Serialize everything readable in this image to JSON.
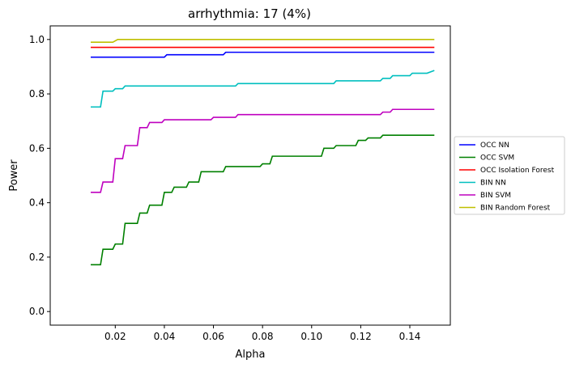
{
  "chart_data": {
    "type": "line",
    "title": "arrhythmia: 17 (4%)",
    "xlabel": "Alpha",
    "ylabel": "Power",
    "xlim": [
      -0.0065,
      0.1565
    ],
    "ylim": [
      -0.05,
      1.05
    ],
    "xticks": [
      0.02,
      0.04,
      0.06,
      0.08,
      0.1,
      0.12,
      0.14
    ],
    "xtick_labels": [
      "0.02",
      "0.04",
      "0.06",
      "0.08",
      "0.10",
      "0.12",
      "0.14"
    ],
    "yticks": [
      0.0,
      0.2,
      0.4,
      0.6,
      0.8,
      1.0
    ],
    "ytick_labels": [
      "0.0",
      "0.2",
      "0.4",
      "0.6",
      "0.8",
      "1.0"
    ],
    "grid": false,
    "legend_position": "outside-right",
    "series": [
      {
        "name": "OCC NN",
        "color": "#0000ff",
        "points": [
          [
            0.01,
            0.935
          ],
          [
            0.04,
            0.935
          ],
          [
            0.041,
            0.944
          ],
          [
            0.064,
            0.944
          ],
          [
            0.065,
            0.953
          ],
          [
            0.15,
            0.953
          ]
        ]
      },
      {
        "name": "OCC SVM",
        "color": "#008000",
        "points": [
          [
            0.01,
            0.172
          ],
          [
            0.014,
            0.172
          ],
          [
            0.015,
            0.229
          ],
          [
            0.019,
            0.229
          ],
          [
            0.02,
            0.248
          ],
          [
            0.023,
            0.248
          ],
          [
            0.024,
            0.324
          ],
          [
            0.029,
            0.324
          ],
          [
            0.03,
            0.362
          ],
          [
            0.033,
            0.362
          ],
          [
            0.034,
            0.391
          ],
          [
            0.039,
            0.391
          ],
          [
            0.04,
            0.438
          ],
          [
            0.043,
            0.438
          ],
          [
            0.044,
            0.457
          ],
          [
            0.049,
            0.457
          ],
          [
            0.05,
            0.476
          ],
          [
            0.054,
            0.476
          ],
          [
            0.055,
            0.514
          ],
          [
            0.064,
            0.514
          ],
          [
            0.065,
            0.533
          ],
          [
            0.079,
            0.533
          ],
          [
            0.08,
            0.543
          ],
          [
            0.083,
            0.543
          ],
          [
            0.084,
            0.571
          ],
          [
            0.1,
            0.571
          ],
          [
            0.104,
            0.571
          ],
          [
            0.105,
            0.6
          ],
          [
            0.109,
            0.6
          ],
          [
            0.11,
            0.61
          ],
          [
            0.118,
            0.61
          ],
          [
            0.119,
            0.629
          ],
          [
            0.122,
            0.629
          ],
          [
            0.123,
            0.638
          ],
          [
            0.128,
            0.638
          ],
          [
            0.129,
            0.648
          ],
          [
            0.15,
            0.648
          ]
        ]
      },
      {
        "name": "OCC Isolation Forest",
        "color": "#ff0000",
        "points": [
          [
            0.01,
            0.971
          ],
          [
            0.15,
            0.971
          ]
        ]
      },
      {
        "name": "BIN NN",
        "color": "#00bfbf",
        "points": [
          [
            0.01,
            0.752
          ],
          [
            0.014,
            0.752
          ],
          [
            0.015,
            0.81
          ],
          [
            0.019,
            0.81
          ],
          [
            0.02,
            0.819
          ],
          [
            0.023,
            0.819
          ],
          [
            0.024,
            0.829
          ],
          [
            0.069,
            0.829
          ],
          [
            0.07,
            0.838
          ],
          [
            0.109,
            0.838
          ],
          [
            0.11,
            0.848
          ],
          [
            0.128,
            0.848
          ],
          [
            0.129,
            0.857
          ],
          [
            0.132,
            0.857
          ],
          [
            0.133,
            0.867
          ],
          [
            0.14,
            0.867
          ],
          [
            0.141,
            0.876
          ],
          [
            0.147,
            0.876
          ],
          [
            0.15,
            0.886
          ]
        ]
      },
      {
        "name": "BIN SVM",
        "color": "#bf00bf",
        "points": [
          [
            0.01,
            0.438
          ],
          [
            0.014,
            0.438
          ],
          [
            0.015,
            0.476
          ],
          [
            0.019,
            0.476
          ],
          [
            0.02,
            0.562
          ],
          [
            0.023,
            0.562
          ],
          [
            0.024,
            0.61
          ],
          [
            0.029,
            0.61
          ],
          [
            0.03,
            0.676
          ],
          [
            0.033,
            0.676
          ],
          [
            0.034,
            0.695
          ],
          [
            0.039,
            0.695
          ],
          [
            0.04,
            0.705
          ],
          [
            0.059,
            0.705
          ],
          [
            0.06,
            0.714
          ],
          [
            0.069,
            0.714
          ],
          [
            0.07,
            0.724
          ],
          [
            0.128,
            0.724
          ],
          [
            0.129,
            0.733
          ],
          [
            0.132,
            0.733
          ],
          [
            0.133,
            0.743
          ],
          [
            0.15,
            0.743
          ]
        ]
      },
      {
        "name": "BIN Random Forest",
        "color": "#bfbf00",
        "points": [
          [
            0.01,
            0.99
          ],
          [
            0.019,
            0.99
          ],
          [
            0.021,
            1.0
          ],
          [
            0.15,
            1.0
          ]
        ]
      }
    ]
  }
}
